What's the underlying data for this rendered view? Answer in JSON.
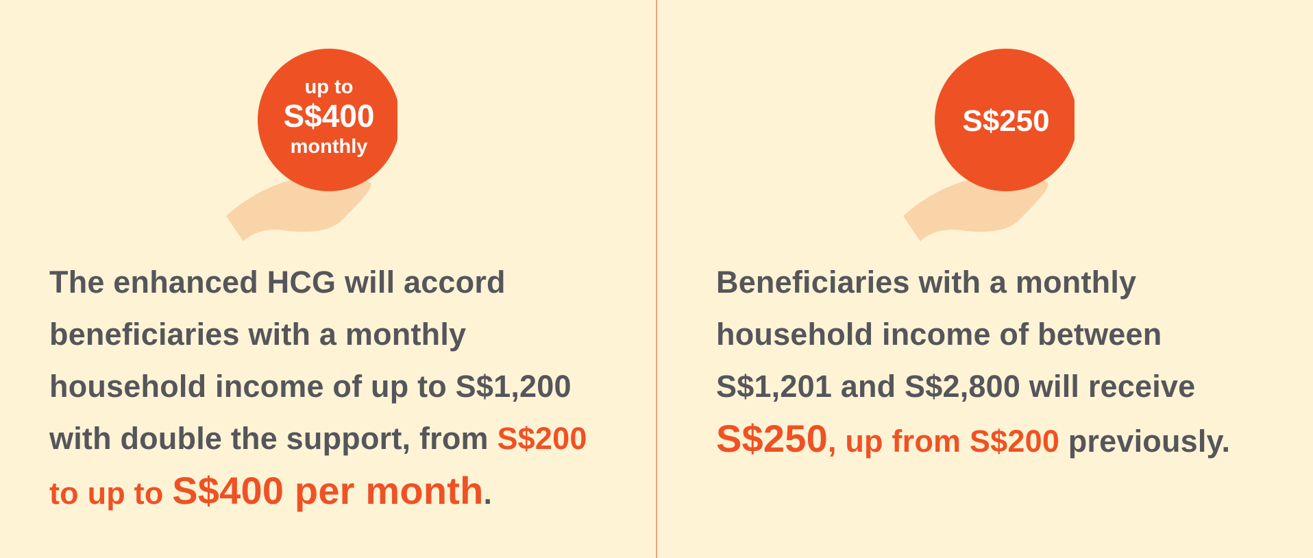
{
  "colors": {
    "background": "#fff3d6",
    "accent": "#ee5224",
    "text": "#55565a",
    "hand": "#f9d4a8",
    "divider": "#e8a57c"
  },
  "left": {
    "badge": {
      "line1": "up to",
      "line2": "S$400",
      "line3": "monthly"
    },
    "text": {
      "line1": "The enhanced HCG will accord",
      "line2": "beneficiaries with a monthly",
      "line3": "household income of up to S$1,200",
      "line4_plain": "with double the support, from ",
      "line4_accent": "S$200",
      "line5_accent": "to up to ",
      "line5_big": "S$400 per month",
      "line5_end": "."
    }
  },
  "right": {
    "badge": {
      "amount": "S$250"
    },
    "text": {
      "line1": "Beneficiaries with a monthly",
      "line2": "household income of between",
      "line3": "S$1,201 and S$2,800 will receive",
      "line4_big": "S$250",
      "line4_accent": ", up from S$200",
      "line4_end": " previously."
    }
  }
}
